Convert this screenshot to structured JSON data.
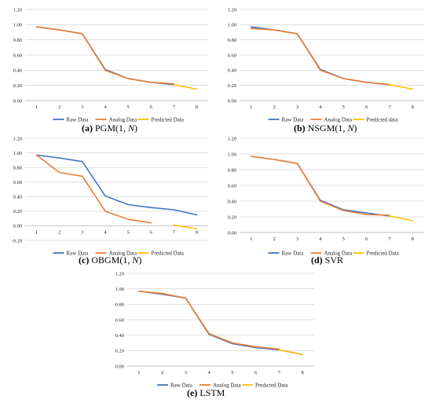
{
  "colors": {
    "raw": "#4472C4",
    "analog": "#ED7D31",
    "predicted": "#FFC000",
    "axis": "#BFBFBF"
  },
  "captions": [
    {
      "letter": "(a)",
      "method": "PGM",
      "args_prefix": "(1, ",
      "args_var": "N",
      "args_suffix": ")"
    },
    {
      "letter": "(b)",
      "method": "NSGM",
      "args_prefix": "(1, ",
      "args_var": "N",
      "args_suffix": ")"
    },
    {
      "letter": "(c)",
      "method": "OBGM",
      "args_prefix": "(1, ",
      "args_var": "N",
      "args_suffix": ")"
    },
    {
      "letter": "(d)",
      "method": "SVR",
      "args_prefix": "",
      "args_var": "",
      "args_suffix": ""
    },
    {
      "letter": "(e)",
      "method": "LSTM",
      "args_prefix": "",
      "args_var": "",
      "args_suffix": ""
    }
  ],
  "chart_data": [
    {
      "type": "line",
      "x": [
        1,
        2,
        3,
        4,
        5,
        6,
        7,
        8
      ],
      "ylim": [
        0,
        1.2
      ],
      "yticks": [
        "0.00",
        "0.20",
        "0.40",
        "0.60",
        "0.80",
        "1.00",
        "1.20"
      ],
      "legend": [
        "Raw Data",
        "Analog Data",
        "Predicted Data"
      ],
      "legend_position": "bottom",
      "series": [
        {
          "name": "Raw Data",
          "x": [
            1,
            2,
            3,
            4,
            5,
            6,
            7
          ],
          "values": [
            0.97,
            0.93,
            0.88,
            0.41,
            0.29,
            0.24,
            0.21
          ]
        },
        {
          "name": "Analog Data",
          "x": [
            1,
            2,
            3,
            4,
            5,
            6,
            7
          ],
          "values": [
            0.97,
            0.93,
            0.88,
            0.4,
            0.29,
            0.24,
            0.22
          ]
        },
        {
          "name": "Predicted Data",
          "x": [
            7,
            8
          ],
          "values": [
            0.21,
            0.15
          ]
        }
      ]
    },
    {
      "type": "line",
      "x": [
        1,
        2,
        3,
        4,
        5,
        6,
        7,
        8
      ],
      "ylim": [
        0,
        1.2
      ],
      "yticks": [
        "0.00",
        "0.20",
        "0.40",
        "0.60",
        "0.80",
        "1.00",
        "1.20"
      ],
      "legend": [
        "Raw Data",
        "Analog Data",
        "Predicted data"
      ],
      "legend_position": "bottom",
      "series": [
        {
          "name": "Raw Data",
          "x": [
            1,
            2,
            3,
            4,
            5,
            6,
            7
          ],
          "values": [
            0.97,
            0.93,
            0.88,
            0.41,
            0.29,
            0.24,
            0.21
          ]
        },
        {
          "name": "Analog Data",
          "x": [
            1,
            2,
            3,
            4,
            5,
            6,
            7
          ],
          "values": [
            0.95,
            0.93,
            0.88,
            0.4,
            0.29,
            0.24,
            0.21
          ]
        },
        {
          "name": "Predicted data",
          "x": [
            7,
            8
          ],
          "values": [
            0.21,
            0.15
          ]
        }
      ]
    },
    {
      "type": "line",
      "x": [
        1,
        2,
        3,
        4,
        5,
        6,
        7,
        8
      ],
      "ylim": [
        -0.2,
        1.2
      ],
      "yticks": [
        "-0.20",
        "0.00",
        "0.20",
        "0.40",
        "0.60",
        "0.80",
        "1.00",
        "1.20"
      ],
      "legend": [
        "Raw Data",
        "Analog Data",
        "Predicted Data"
      ],
      "legend_position": "bottom",
      "series": [
        {
          "name": "Raw Data",
          "x": [
            1,
            2,
            3,
            4,
            5,
            6,
            7,
            8
          ],
          "values": [
            0.97,
            0.93,
            0.88,
            0.41,
            0.29,
            0.25,
            0.22,
            0.15
          ]
        },
        {
          "name": "Analog Data",
          "x": [
            1,
            2,
            3,
            4,
            5,
            6
          ],
          "values": [
            0.97,
            0.73,
            0.68,
            0.2,
            0.09,
            0.04
          ]
        },
        {
          "name": "Predicted Data",
          "x": [
            7,
            8
          ],
          "values": [
            0.01,
            -0.04
          ]
        }
      ]
    },
    {
      "type": "line",
      "x": [
        1,
        2,
        3,
        4,
        5,
        6,
        7,
        8
      ],
      "ylim": [
        0,
        1.2
      ],
      "yticks": [
        "0.00",
        "0.20",
        "0.40",
        "0.60",
        "0.80",
        "1.00",
        "1.20"
      ],
      "legend": [
        "Raw Data",
        "Analog Data",
        "Predicted Data"
      ],
      "legend_position": "bottom",
      "series": [
        {
          "name": "Raw Data",
          "x": [
            1,
            2,
            3,
            4,
            5,
            6,
            7
          ],
          "values": [
            0.97,
            0.93,
            0.88,
            0.41,
            0.29,
            0.25,
            0.21
          ]
        },
        {
          "name": "Analog Data",
          "x": [
            1,
            2,
            3,
            4,
            5,
            6,
            7
          ],
          "values": [
            0.97,
            0.93,
            0.88,
            0.4,
            0.28,
            0.23,
            0.22
          ]
        },
        {
          "name": "Predicted Data",
          "x": [
            7,
            8
          ],
          "values": [
            0.21,
            0.15
          ]
        }
      ]
    },
    {
      "type": "line",
      "x": [
        1,
        2,
        3,
        4,
        5,
        6,
        7,
        8
      ],
      "ylim": [
        0,
        1.2
      ],
      "yticks": [
        "0.00",
        "0.20",
        "0.40",
        "0.60",
        "0.80",
        "1.00",
        "1.20"
      ],
      "legend": [
        "Raw Data",
        "Analog Data",
        "Predicted Data"
      ],
      "legend_position": "bottom",
      "series": [
        {
          "name": "Raw Data",
          "x": [
            1,
            2,
            3,
            4,
            5,
            6,
            7,
            8
          ],
          "values": [
            0.97,
            0.93,
            0.88,
            0.41,
            0.29,
            0.24,
            0.21,
            0.15
          ]
        },
        {
          "name": "Analog Data",
          "x": [
            1,
            2,
            3,
            4,
            5,
            6,
            7
          ],
          "values": [
            0.97,
            0.94,
            0.88,
            0.42,
            0.3,
            0.25,
            0.22
          ]
        },
        {
          "name": "Predicted Data",
          "x": [
            7,
            8
          ],
          "values": [
            0.21,
            0.15
          ]
        }
      ]
    }
  ]
}
